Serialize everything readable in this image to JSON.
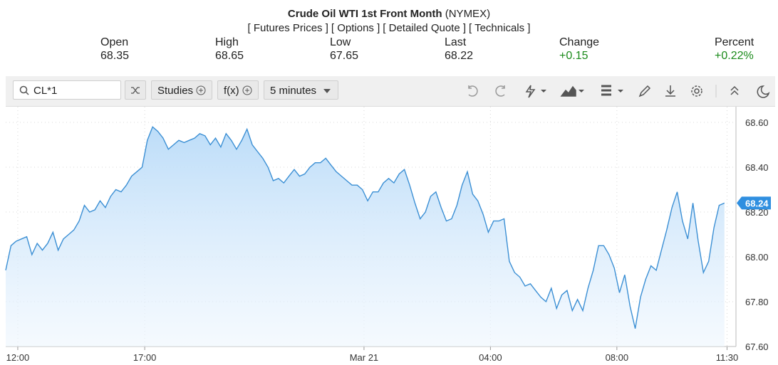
{
  "header": {
    "title": "Crude Oil WTI 1st Front Month",
    "exchange": "(NYMEX)",
    "links": [
      "[ Futures Prices ]",
      "[ Options ]",
      "[ Detailed Quote ]",
      "[ Technicals ]"
    ],
    "stats": [
      {
        "label": "Open",
        "value": "68.35"
      },
      {
        "label": "High",
        "value": "68.65"
      },
      {
        "label": "Low",
        "value": "67.65"
      },
      {
        "label": "Last",
        "value": "68.22"
      },
      {
        "label": "Change",
        "value": "+0.15"
      },
      {
        "label": "Percent",
        "value": "+0.22%"
      }
    ]
  },
  "toolbar": {
    "symbol": "CL*1",
    "studies": "Studies",
    "fx": "f(x)",
    "interval": "5 minutes"
  },
  "chart_data": {
    "type": "area",
    "color": "#3b8fd4",
    "grid": true,
    "values": [
      67.94,
      68.05,
      68.07,
      68.08,
      68.09,
      68.01,
      68.06,
      68.03,
      68.06,
      68.11,
      68.03,
      68.08,
      68.1,
      68.12,
      68.16,
      68.23,
      68.2,
      68.21,
      68.25,
      68.22,
      68.27,
      68.3,
      68.29,
      68.32,
      68.36,
      68.38,
      68.4,
      68.52,
      68.58,
      68.56,
      68.53,
      68.48,
      68.5,
      68.52,
      68.51,
      68.52,
      68.53,
      68.55,
      68.54,
      68.5,
      68.53,
      68.49,
      68.55,
      68.52,
      68.48,
      68.52,
      68.57,
      68.5,
      68.47,
      68.44,
      68.4,
      68.34,
      68.35,
      68.33,
      68.36,
      68.39,
      68.36,
      68.37,
      68.4,
      68.42,
      68.42,
      68.44,
      68.41,
      68.38,
      68.36,
      68.34,
      68.32,
      68.32,
      68.3,
      68.25,
      68.29,
      68.29,
      68.33,
      68.35,
      68.33,
      68.37,
      68.39,
      68.32,
      68.24,
      68.17,
      68.2,
      68.27,
      68.29,
      68.22,
      68.16,
      68.17,
      68.23,
      68.32,
      68.38,
      68.28,
      68.25,
      68.19,
      68.11,
      68.16,
      68.16,
      68.17,
      67.98,
      67.93,
      67.91,
      67.87,
      67.88,
      67.85,
      67.82,
      67.8,
      67.86,
      67.77,
      67.83,
      67.85,
      67.76,
      67.81,
      67.76,
      67.86,
      67.94,
      68.05,
      68.05,
      68.01,
      67.95,
      67.84,
      67.92,
      67.78,
      67.68,
      67.82,
      67.9,
      67.96,
      67.94,
      68.03,
      68.12,
      68.22,
      68.29,
      68.16,
      68.08,
      68.24,
      68.07,
      67.93,
      67.98,
      68.13,
      68.23,
      68.24
    ],
    "xlim": [
      0,
      139.2
    ],
    "xticks": [
      {
        "value": 2.3,
        "label": "12:00"
      },
      {
        "value": 26.5,
        "label": "17:00"
      },
      {
        "value": 68.3,
        "label": "Mar 21"
      },
      {
        "value": 92.4,
        "label": "04:00"
      },
      {
        "value": 116.5,
        "label": "08:00"
      },
      {
        "value": 137.5,
        "label": "11:30"
      }
    ],
    "ylim": [
      67.6,
      68.67
    ],
    "yticks": [
      {
        "value": 67.6,
        "label": "67.60"
      },
      {
        "value": 67.8,
        "label": "67.80"
      },
      {
        "value": 68.0,
        "label": "68.00"
      },
      {
        "value": 68.2,
        "label": "68.20"
      },
      {
        "value": 68.4,
        "label": "68.40"
      },
      {
        "value": 68.6,
        "label": "68.60"
      }
    ]
  }
}
